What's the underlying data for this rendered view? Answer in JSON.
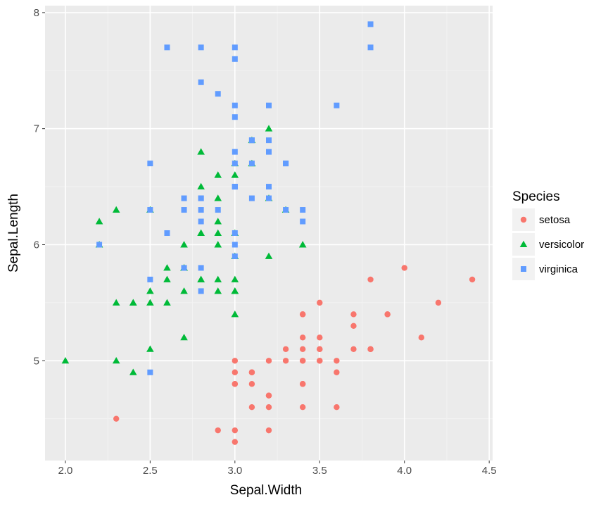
{
  "chart_data": {
    "type": "scatter",
    "xlabel": "Sepal.Width",
    "ylabel": "Sepal.Length",
    "xlim": [
      1.88,
      4.52
    ],
    "ylim": [
      4.14,
      8.06
    ],
    "x_ticks": [
      2.0,
      2.5,
      3.0,
      3.5,
      4.0,
      4.5
    ],
    "x_tick_labels": [
      "2.0",
      "2.5",
      "3.0",
      "3.5",
      "4.0",
      "4.5"
    ],
    "y_ticks": [
      5,
      6,
      7,
      8
    ],
    "y_tick_labels": [
      "5",
      "6",
      "7",
      "8"
    ],
    "grid": true,
    "legend": {
      "title": "Species",
      "placement": "right",
      "entries": [
        {
          "label": "setosa",
          "shape": "circle",
          "color": "#F8766D"
        },
        {
          "label": "versicolor",
          "shape": "triangle",
          "color": "#00BA38"
        },
        {
          "label": "virginica",
          "shape": "square",
          "color": "#619CFF"
        }
      ]
    },
    "series": [
      {
        "name": "setosa",
        "shape": "circle",
        "color": "#F8766D",
        "points": [
          [
            3.5,
            5.1
          ],
          [
            3.0,
            4.9
          ],
          [
            3.2,
            4.7
          ],
          [
            3.1,
            4.6
          ],
          [
            3.6,
            5.0
          ],
          [
            3.9,
            5.4
          ],
          [
            3.4,
            4.6
          ],
          [
            3.4,
            5.0
          ],
          [
            2.9,
            4.4
          ],
          [
            3.1,
            4.9
          ],
          [
            3.7,
            5.4
          ],
          [
            3.4,
            4.8
          ],
          [
            3.0,
            4.8
          ],
          [
            3.0,
            4.3
          ],
          [
            4.0,
            5.8
          ],
          [
            4.4,
            5.7
          ],
          [
            3.9,
            5.4
          ],
          [
            3.5,
            5.1
          ],
          [
            3.8,
            5.7
          ],
          [
            3.8,
            5.1
          ],
          [
            3.4,
            5.4
          ],
          [
            3.7,
            5.1
          ],
          [
            3.6,
            4.6
          ],
          [
            3.3,
            5.1
          ],
          [
            3.4,
            4.8
          ],
          [
            3.0,
            5.0
          ],
          [
            3.4,
            5.0
          ],
          [
            3.5,
            5.2
          ],
          [
            3.4,
            5.2
          ],
          [
            3.2,
            4.7
          ],
          [
            3.1,
            4.8
          ],
          [
            3.4,
            5.4
          ],
          [
            4.1,
            5.2
          ],
          [
            4.2,
            5.5
          ],
          [
            3.1,
            4.9
          ],
          [
            3.2,
            5.0
          ],
          [
            3.5,
            5.5
          ],
          [
            3.6,
            4.9
          ],
          [
            3.0,
            4.4
          ],
          [
            3.4,
            5.1
          ],
          [
            3.5,
            5.0
          ],
          [
            2.3,
            4.5
          ],
          [
            3.2,
            4.4
          ],
          [
            3.5,
            5.0
          ],
          [
            3.8,
            5.1
          ],
          [
            3.0,
            4.8
          ],
          [
            3.8,
            5.1
          ],
          [
            3.2,
            4.6
          ],
          [
            3.7,
            5.3
          ],
          [
            3.3,
            5.0
          ]
        ]
      },
      {
        "name": "versicolor",
        "shape": "triangle",
        "color": "#00BA38",
        "points": [
          [
            3.2,
            7.0
          ],
          [
            3.2,
            6.4
          ],
          [
            3.1,
            6.9
          ],
          [
            2.3,
            5.5
          ],
          [
            2.8,
            6.5
          ],
          [
            2.8,
            5.7
          ],
          [
            3.3,
            6.3
          ],
          [
            2.4,
            4.9
          ],
          [
            2.9,
            6.6
          ],
          [
            2.7,
            5.2
          ],
          [
            2.0,
            5.0
          ],
          [
            3.0,
            5.9
          ],
          [
            2.2,
            6.0
          ],
          [
            2.9,
            6.1
          ],
          [
            2.9,
            5.6
          ],
          [
            3.1,
            6.7
          ],
          [
            3.0,
            5.6
          ],
          [
            2.7,
            5.8
          ],
          [
            2.2,
            6.2
          ],
          [
            2.5,
            5.6
          ],
          [
            3.2,
            5.9
          ],
          [
            2.8,
            6.1
          ],
          [
            2.5,
            6.3
          ],
          [
            2.8,
            6.1
          ],
          [
            2.9,
            6.4
          ],
          [
            3.0,
            6.6
          ],
          [
            2.8,
            6.8
          ],
          [
            3.0,
            6.7
          ],
          [
            2.9,
            6.0
          ],
          [
            2.6,
            5.7
          ],
          [
            2.4,
            5.5
          ],
          [
            2.4,
            5.5
          ],
          [
            2.7,
            5.8
          ],
          [
            2.7,
            6.0
          ],
          [
            3.0,
            5.4
          ],
          [
            3.4,
            6.0
          ],
          [
            3.1,
            6.7
          ],
          [
            2.3,
            6.3
          ],
          [
            3.0,
            5.6
          ],
          [
            2.5,
            5.5
          ],
          [
            2.6,
            5.5
          ],
          [
            3.0,
            6.1
          ],
          [
            2.6,
            5.8
          ],
          [
            2.3,
            5.0
          ],
          [
            2.7,
            5.6
          ],
          [
            3.0,
            5.7
          ],
          [
            2.9,
            5.7
          ],
          [
            2.9,
            6.2
          ],
          [
            2.5,
            5.1
          ],
          [
            2.8,
            5.7
          ]
        ]
      },
      {
        "name": "virginica",
        "shape": "square",
        "color": "#619CFF",
        "points": [
          [
            3.3,
            6.3
          ],
          [
            2.7,
            5.8
          ],
          [
            3.0,
            7.1
          ],
          [
            2.9,
            6.3
          ],
          [
            3.0,
            6.5
          ],
          [
            3.0,
            7.6
          ],
          [
            2.5,
            4.9
          ],
          [
            2.9,
            7.3
          ],
          [
            2.5,
            6.7
          ],
          [
            3.6,
            7.2
          ],
          [
            3.2,
            6.5
          ],
          [
            2.7,
            6.4
          ],
          [
            3.0,
            6.8
          ],
          [
            2.5,
            5.7
          ],
          [
            2.8,
            5.8
          ],
          [
            3.2,
            6.4
          ],
          [
            3.0,
            6.5
          ],
          [
            3.8,
            7.7
          ],
          [
            2.6,
            7.7
          ],
          [
            2.2,
            6.0
          ],
          [
            3.2,
            6.9
          ],
          [
            2.8,
            5.6
          ],
          [
            2.8,
            7.7
          ],
          [
            2.7,
            6.3
          ],
          [
            3.3,
            6.7
          ],
          [
            3.2,
            7.2
          ],
          [
            2.8,
            6.2
          ],
          [
            3.0,
            6.1
          ],
          [
            2.8,
            6.4
          ],
          [
            3.0,
            7.2
          ],
          [
            2.8,
            7.4
          ],
          [
            3.8,
            7.9
          ],
          [
            2.8,
            6.4
          ],
          [
            2.8,
            6.3
          ],
          [
            2.6,
            6.1
          ],
          [
            3.0,
            7.7
          ],
          [
            3.4,
            6.3
          ],
          [
            3.1,
            6.4
          ],
          [
            3.0,
            6.0
          ],
          [
            3.1,
            6.9
          ],
          [
            3.1,
            6.7
          ],
          [
            3.1,
            6.9
          ],
          [
            2.7,
            5.8
          ],
          [
            3.2,
            6.8
          ],
          [
            3.3,
            6.7
          ],
          [
            3.0,
            6.7
          ],
          [
            2.5,
            6.3
          ],
          [
            3.0,
            6.5
          ],
          [
            3.4,
            6.2
          ],
          [
            3.0,
            5.9
          ]
        ]
      }
    ]
  }
}
